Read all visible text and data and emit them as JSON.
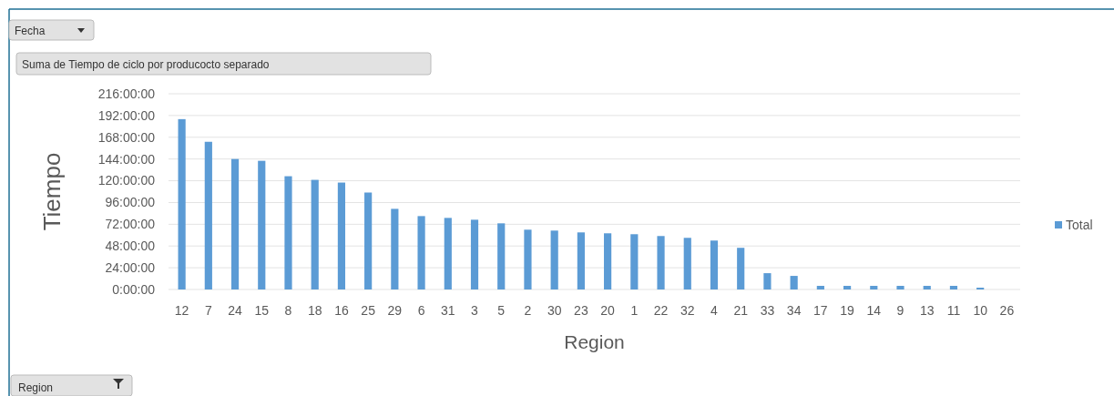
{
  "chart_data": {
    "type": "bar",
    "xlabel": "Region",
    "ylabel": "Tiempo",
    "categories": [
      "12",
      "7",
      "24",
      "15",
      "8",
      "18",
      "16",
      "25",
      "29",
      "6",
      "31",
      "3",
      "5",
      "2",
      "30",
      "23",
      "20",
      "1",
      "22",
      "32",
      "4",
      "21",
      "33",
      "34",
      "17",
      "19",
      "14",
      "9",
      "13",
      "11",
      "10",
      "26"
    ],
    "series": [
      {
        "name": "Total",
        "color": "#5b9bd5",
        "values": [
          188,
          163,
          144,
          142,
          125,
          121,
          118,
          107,
          89,
          81,
          79,
          77,
          73,
          66,
          65,
          63,
          62,
          61,
          59,
          57,
          54,
          46,
          18,
          15,
          4,
          4,
          4,
          4,
          4,
          4,
          2,
          0
        ]
      }
    ],
    "ylim": [
      0,
      216
    ],
    "yticks": [
      {
        "value": 0,
        "label": "0:00:00"
      },
      {
        "value": 24,
        "label": "24:00:00"
      },
      {
        "value": 48,
        "label": "48:00:00"
      },
      {
        "value": 72,
        "label": "72:00:00"
      },
      {
        "value": 96,
        "label": "96:00:00"
      },
      {
        "value": 120,
        "label": "120:00:00"
      },
      {
        "value": 144,
        "label": "144:00:00"
      },
      {
        "value": 168,
        "label": "168:00:00"
      },
      {
        "value": 192,
        "label": "192:00:00"
      },
      {
        "value": 216,
        "label": "216:00:00"
      }
    ],
    "grid": "y",
    "legend": "right",
    "annotations": [
      "Fecha",
      "Suma de Tiempo de ciclo por producocto separado",
      "Region"
    ]
  }
}
